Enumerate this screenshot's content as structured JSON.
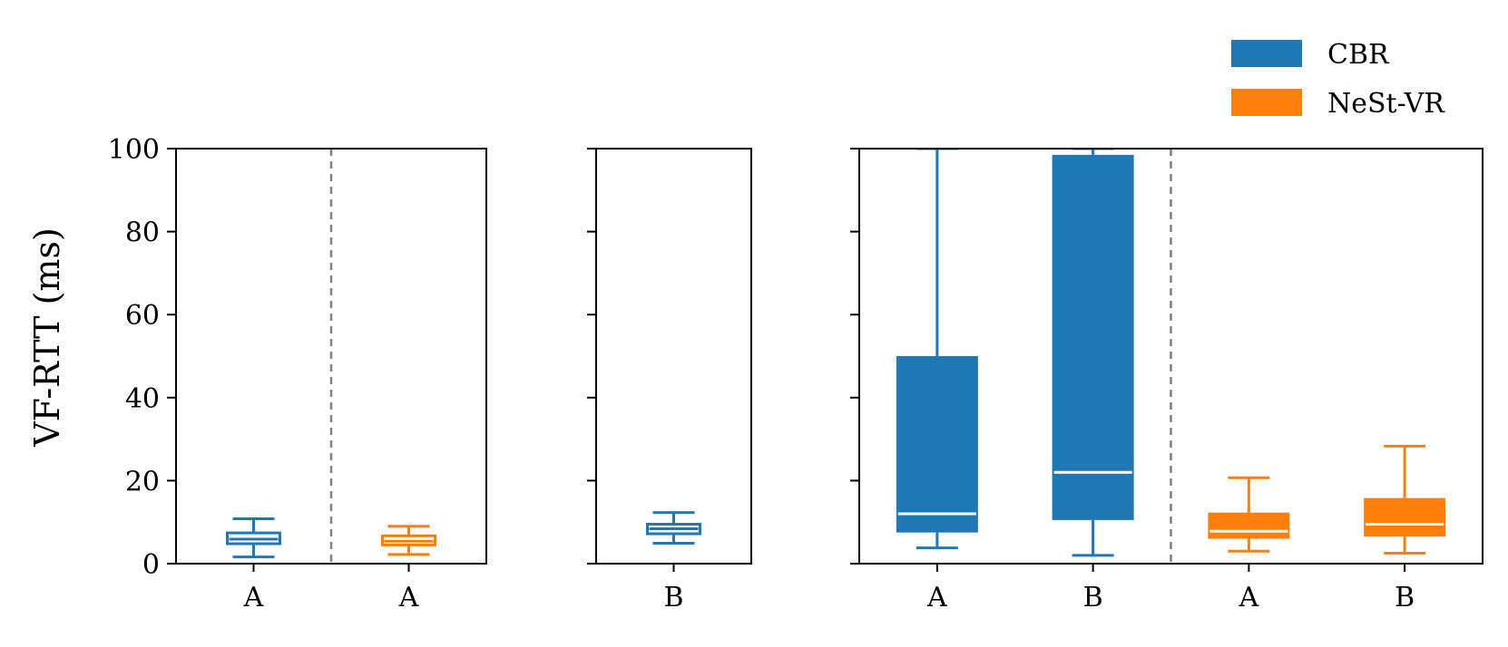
{
  "chart_data": {
    "type": "box",
    "ylabel": "VF-RTT (ms)",
    "ylim": [
      0,
      100
    ],
    "yticks": [
      0,
      20,
      40,
      60,
      80,
      100
    ],
    "legend": {
      "placement": "top-right",
      "entries": [
        {
          "name": "CBR",
          "color": "#1f77b4"
        },
        {
          "name": "NeSt-VR",
          "color": "#ff7f0e"
        }
      ]
    },
    "panels": [
      {
        "divider_after": 0,
        "boxes": [
          {
            "label": "A",
            "series": "CBR",
            "filled": false,
            "whislo": 1.6,
            "q1": 4.8,
            "median": 5.9,
            "q3": 7.4,
            "whishi": 10.8
          },
          {
            "label": "A",
            "series": "NeSt-VR",
            "filled": false,
            "whislo": 2.2,
            "q1": 4.5,
            "median": 5.4,
            "q3": 6.7,
            "whishi": 9.0
          }
        ]
      },
      {
        "divider_after": null,
        "boxes": [
          {
            "label": "B",
            "series": "CBR",
            "filled": false,
            "whislo": 4.9,
            "q1": 7.2,
            "median": 8.4,
            "q3": 9.5,
            "whishi": 12.3
          }
        ]
      },
      {
        "divider_after": 1,
        "boxes": [
          {
            "label": "A",
            "series": "CBR",
            "filled": true,
            "whislo": 3.8,
            "q1": 7.5,
            "median": 12.0,
            "q3": 50.0,
            "whishi": 100
          },
          {
            "label": "B",
            "series": "CBR",
            "filled": true,
            "whislo": 2.0,
            "q1": 10.5,
            "median": 22.0,
            "q3": 98.5,
            "whishi": 100
          },
          {
            "label": "A",
            "series": "NeSt-VR",
            "filled": true,
            "whislo": 3.0,
            "q1": 6.0,
            "median": 7.8,
            "q3": 12.3,
            "whishi": 20.7
          },
          {
            "label": "B",
            "series": "NeSt-VR",
            "filled": true,
            "whislo": 2.5,
            "q1": 6.5,
            "median": 9.5,
            "q3": 15.8,
            "whishi": 28.3
          }
        ]
      }
    ]
  }
}
